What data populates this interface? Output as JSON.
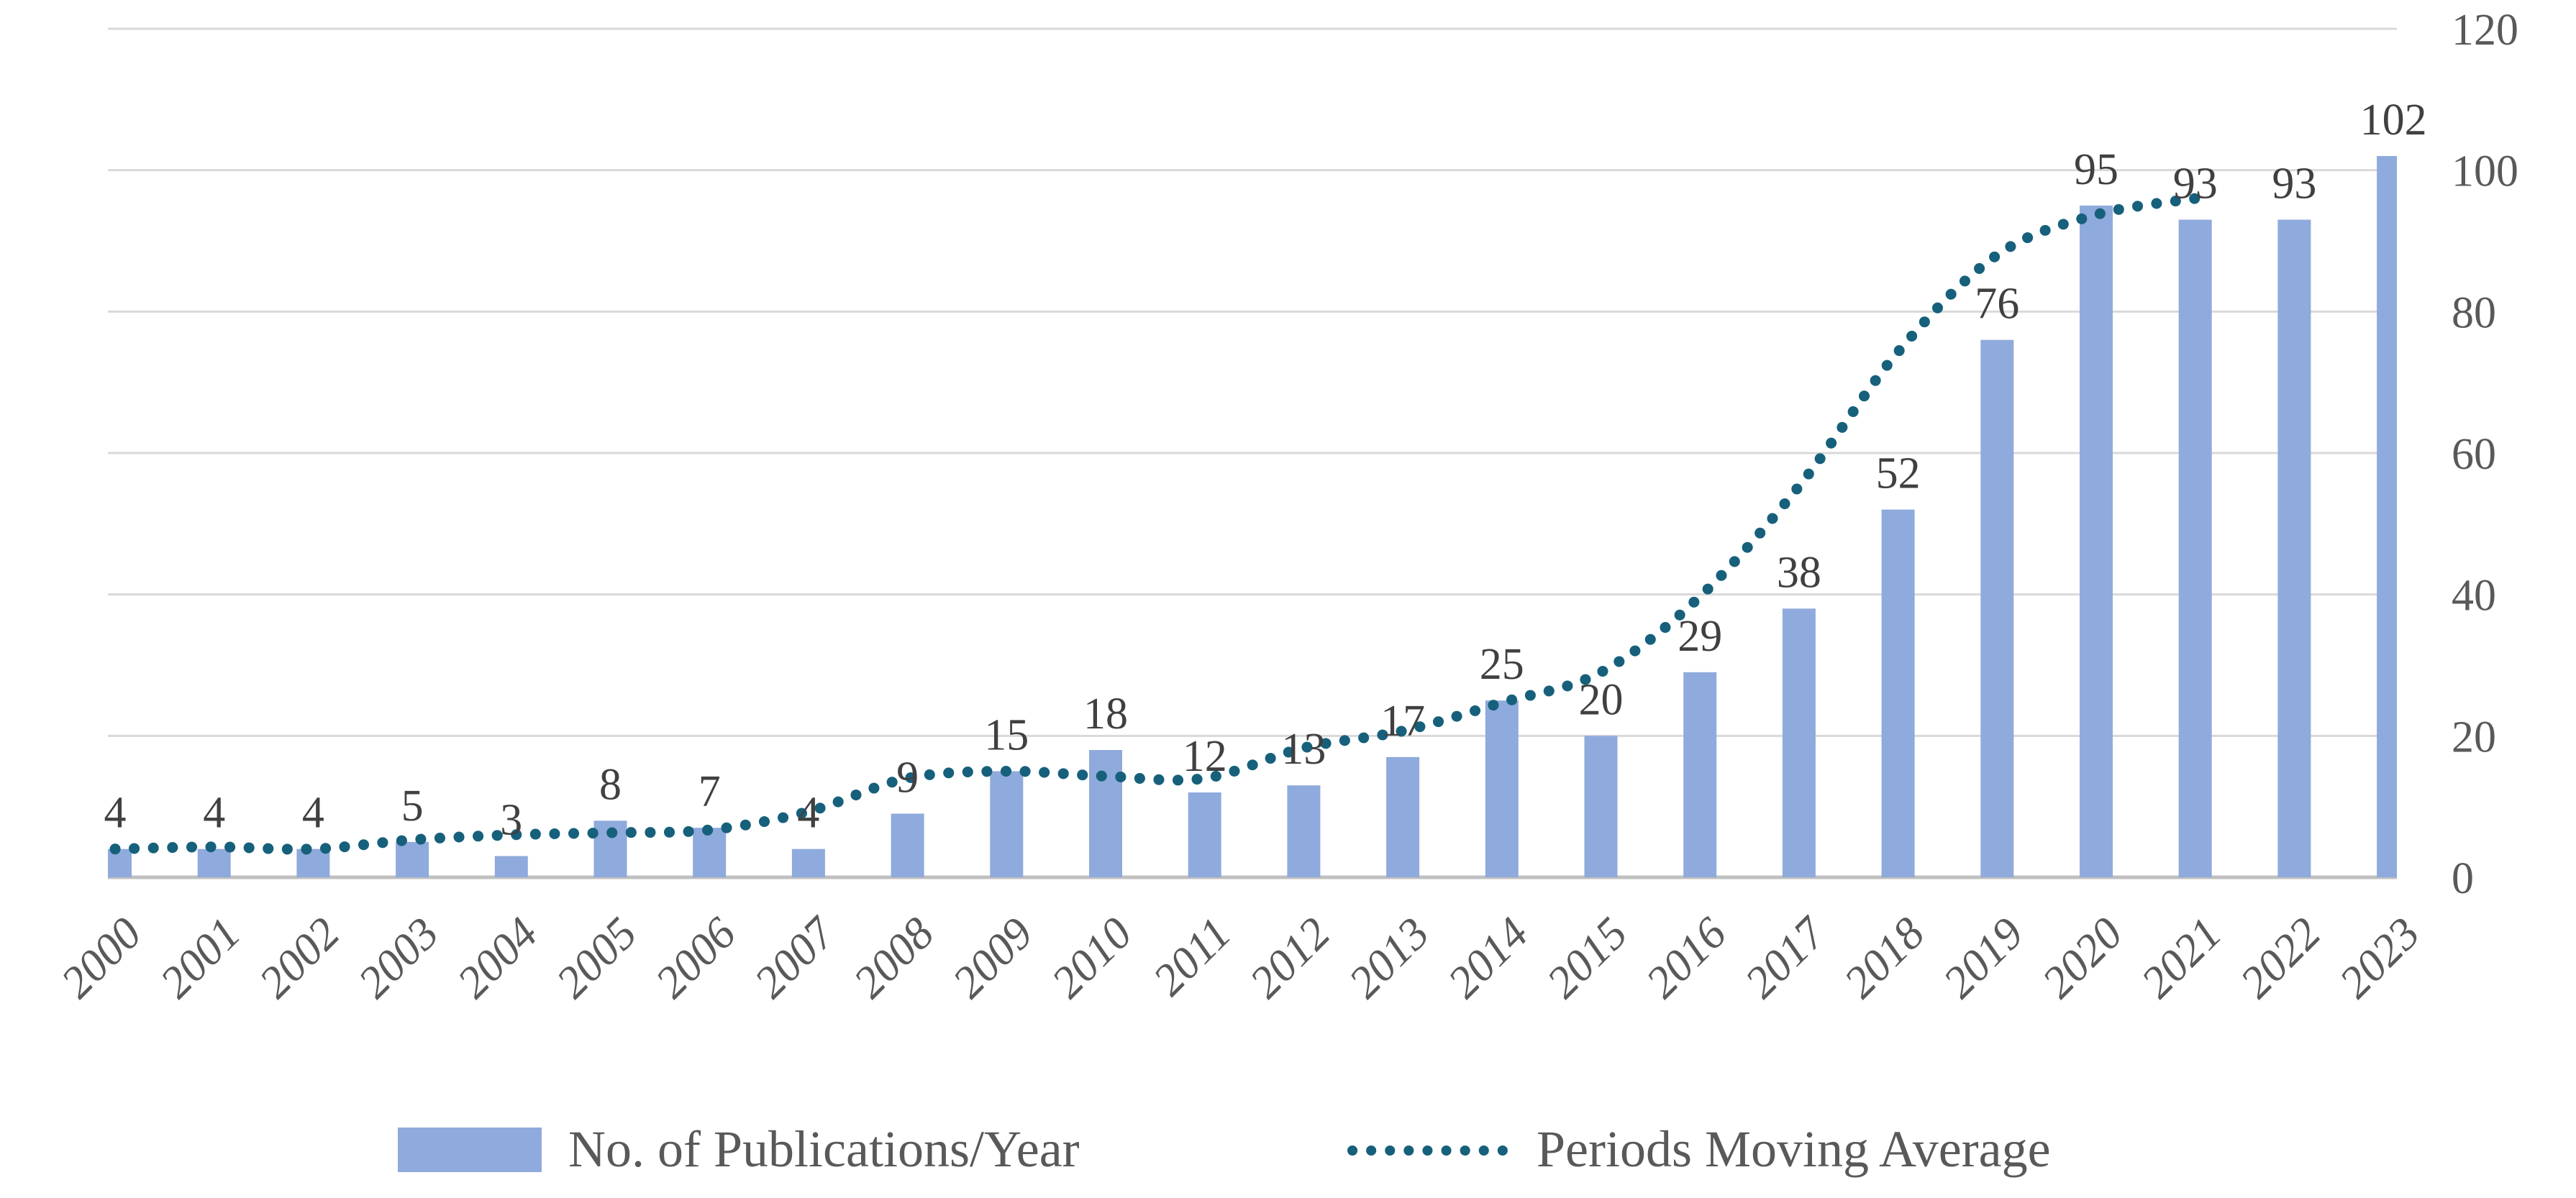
{
  "chart_data": {
    "type": "bar",
    "title": "",
    "categories": [
      "2000",
      "2001",
      "2002",
      "2003",
      "2004",
      "2005",
      "2006",
      "2007",
      "2008",
      "2009",
      "2010",
      "2011",
      "2012",
      "2013",
      "2014",
      "2015",
      "2016",
      "2017",
      "2018",
      "2019",
      "2020",
      "2021",
      "2022",
      "2023"
    ],
    "series": [
      {
        "name": "No. of Publications/Year",
        "type": "bar",
        "color": "#8FAADC",
        "values": [
          4,
          4,
          4,
          5,
          3,
          8,
          7,
          4,
          9,
          15,
          18,
          12,
          13,
          17,
          25,
          20,
          29,
          38,
          52,
          76,
          95,
          93,
          93,
          102
        ]
      },
      {
        "name": "Periods Moving Average",
        "type": "line",
        "line_style": "dotted",
        "smooth": true,
        "color": "#16607C",
        "categories": [
          "2000",
          "2001",
          "2002",
          "2003",
          "2004",
          "2005",
          "2006",
          "2007",
          "2008",
          "2009",
          "2010",
          "2011",
          "2012",
          "2013",
          "2014",
          "2015",
          "2016",
          "2017",
          "2018",
          "2019",
          "2020",
          "2021"
        ],
        "values": [
          4,
          4.3,
          4,
          5.3,
          6,
          6.3,
          6.7,
          9.3,
          14,
          15,
          14.3,
          14,
          18.3,
          20.7,
          24.7,
          29,
          39.7,
          55.3,
          74.3,
          88,
          93.7,
          96
        ]
      }
    ],
    "data_labels": [
      "4",
      "4",
      "4",
      "5",
      "3",
      "8",
      "7",
      "4",
      "9",
      "15",
      "18",
      "12",
      "13",
      "17",
      "25",
      "20",
      "29",
      "38",
      "52",
      "76",
      "95",
      "93",
      "93",
      "102"
    ],
    "y_axis": {
      "side": "right",
      "min": 0,
      "max": 120,
      "step": 20,
      "tick_labels": [
        "0",
        "20",
        "40",
        "60",
        "80",
        "100",
        "120"
      ]
    },
    "x_axis": {
      "label_rotation_deg": -45
    },
    "legend": {
      "position": "bottom",
      "items": [
        "No. of Publications/Year",
        "Periods Moving Average"
      ]
    },
    "grid": true,
    "colors": {
      "bar_fill": "#8FAADC",
      "line": "#16607C",
      "gridline": "#D9D9D9",
      "axis_line": "#BFBFBF",
      "data_label_text": "#404040",
      "axis_text": "#595959",
      "background": "#FFFFFF"
    }
  }
}
